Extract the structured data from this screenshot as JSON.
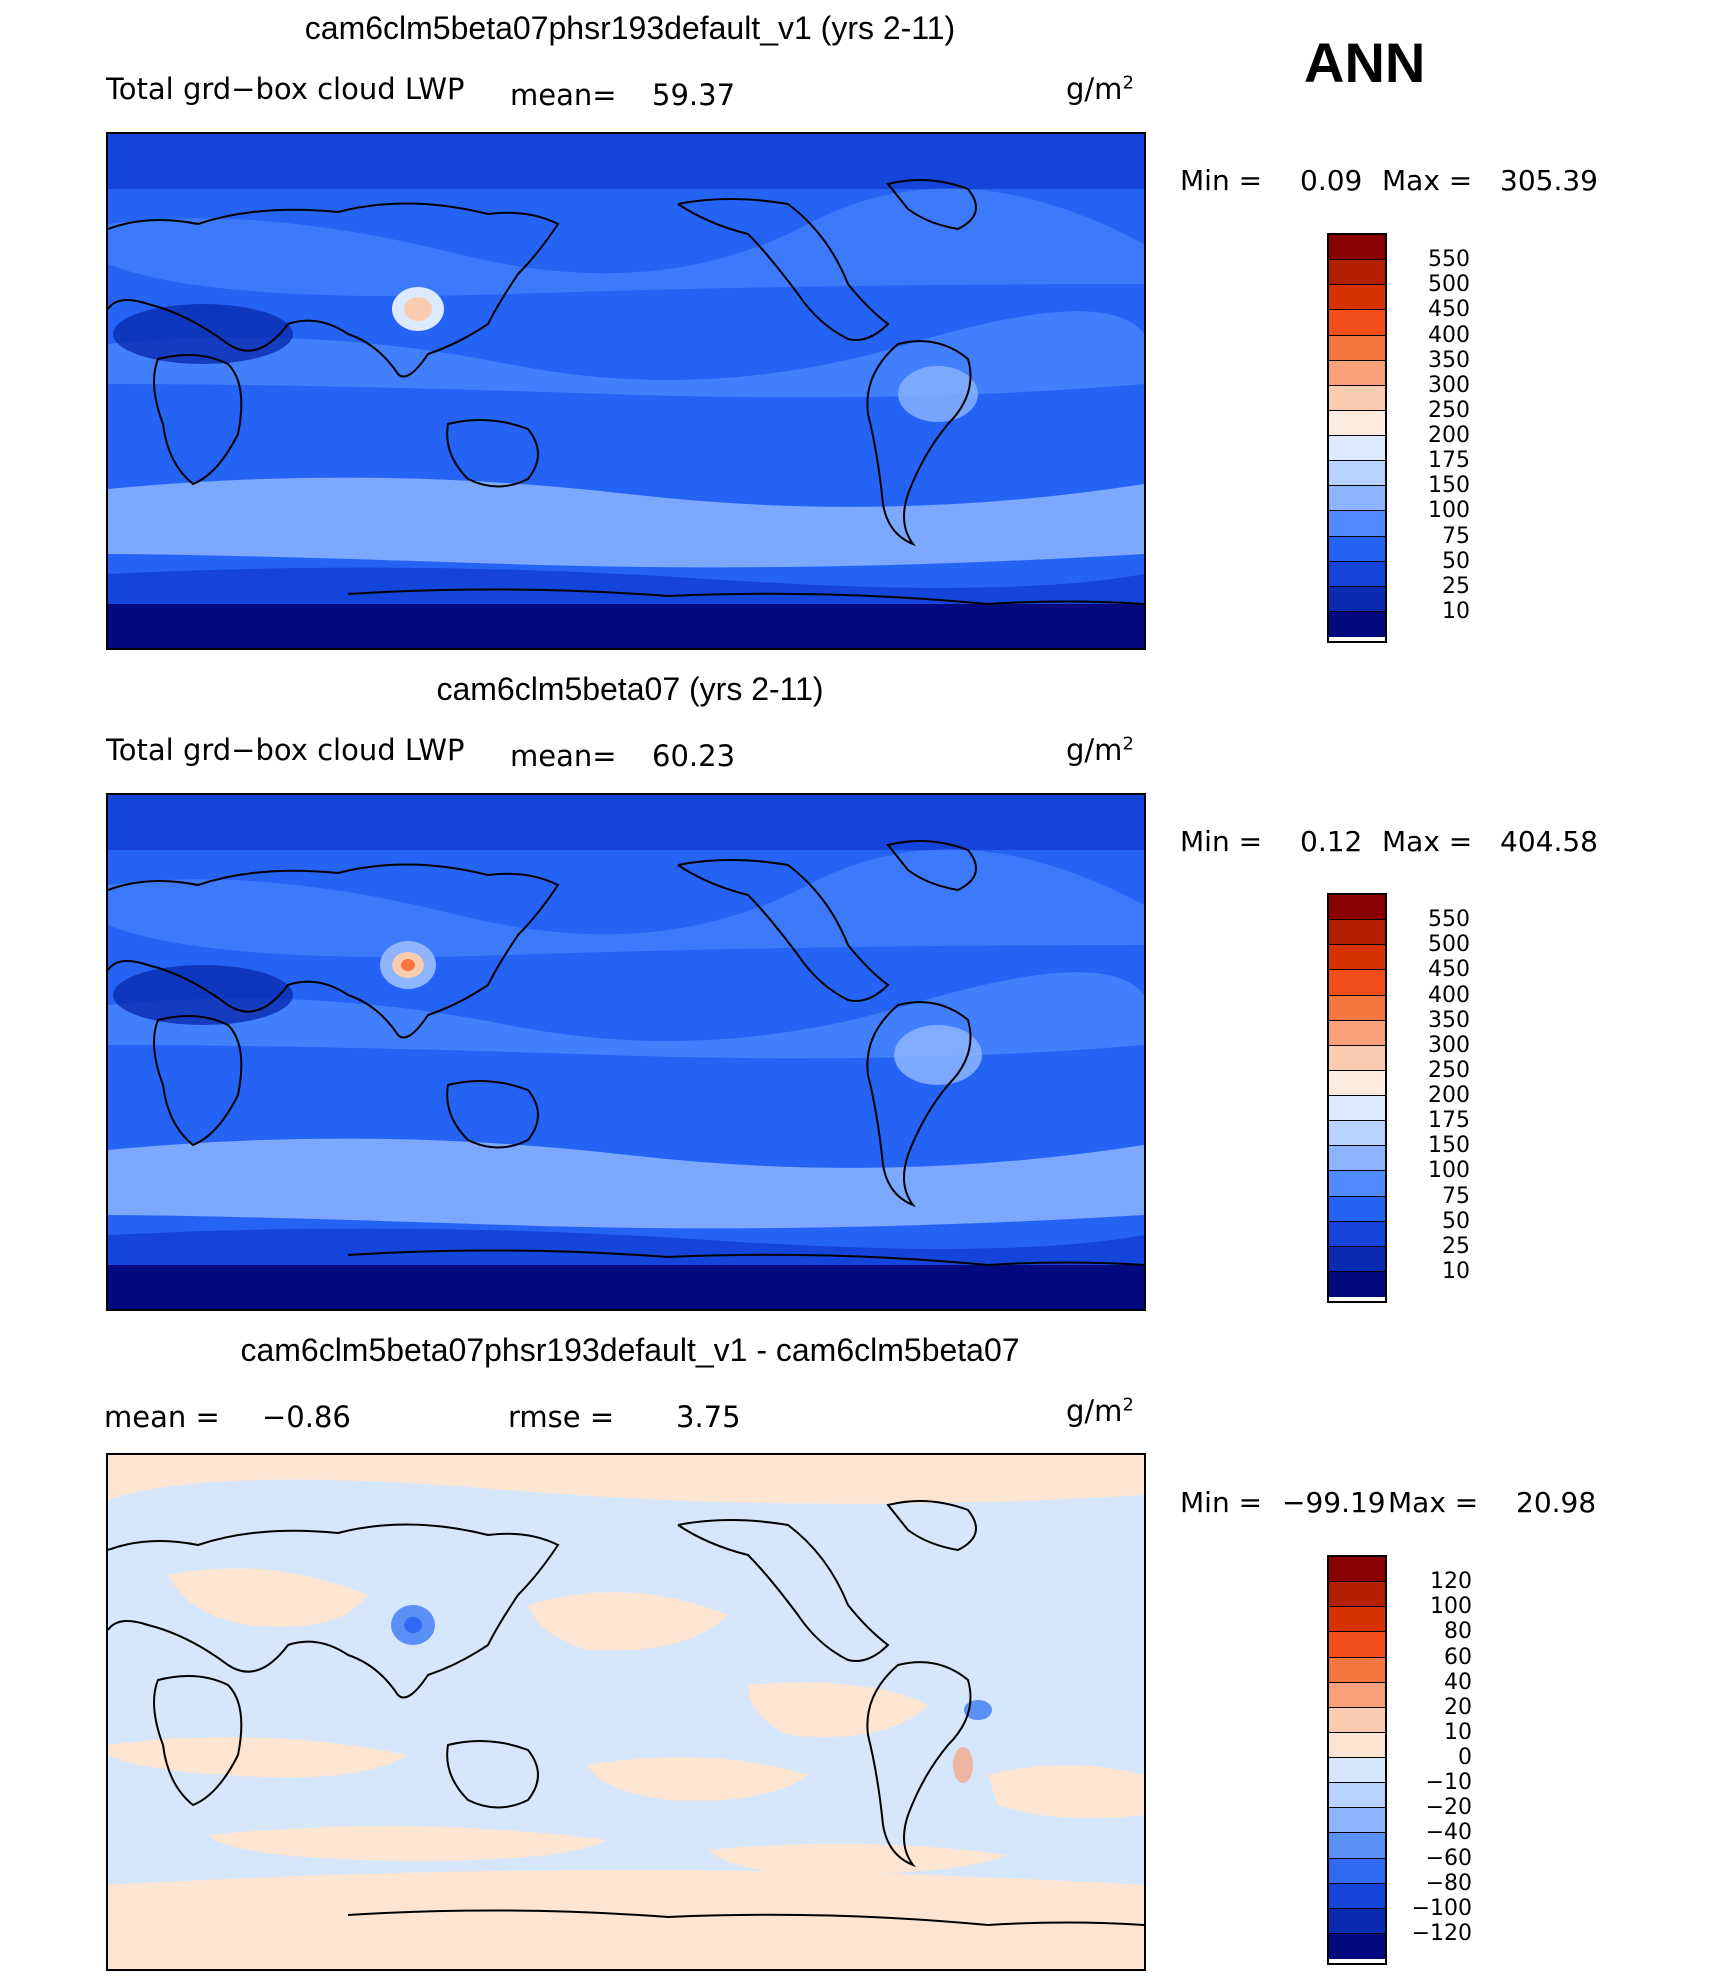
{
  "season": "ANN",
  "units_base": "g/m",
  "units_exp": "2",
  "panels": [
    {
      "title": "cam6clm5beta07phsr193default_v1 (yrs 2-11)",
      "variable": "Total grd−box cloud LWP",
      "mean_label": "mean=",
      "mean_value": "59.37",
      "min_label": "Min =",
      "min_value": "0.09",
      "max_label": "Max =",
      "max_value": "305.39",
      "colorbar": {
        "levels": [
          "550",
          "500",
          "450",
          "400",
          "350",
          "300",
          "250",
          "200",
          "175",
          "150",
          "100",
          "75",
          "50",
          "25",
          "10"
        ],
        "colors": [
          "#8b0000",
          "#b22000",
          "#d53200",
          "#f24e1a",
          "#f5763f",
          "#f8a07c",
          "#fbcbb0",
          "#fdebde",
          "#dbeaff",
          "#b8d2ff",
          "#8cb4ff",
          "#4f8bff",
          "#2563f5",
          "#1444d9",
          "#0a2cb0",
          "#030a80"
        ]
      }
    },
    {
      "title": "cam6clm5beta07 (yrs 2-11)",
      "variable": "Total grd−box cloud LWP",
      "mean_label": "mean=",
      "mean_value": "60.23",
      "min_label": "Min =",
      "min_value": "0.12",
      "max_label": "Max =",
      "max_value": "404.58",
      "colorbar": {
        "levels": [
          "550",
          "500",
          "450",
          "400",
          "350",
          "300",
          "250",
          "200",
          "175",
          "150",
          "100",
          "75",
          "50",
          "25",
          "10"
        ],
        "colors": [
          "#8b0000",
          "#b22000",
          "#d53200",
          "#f24e1a",
          "#f5763f",
          "#f8a07c",
          "#fbcbb0",
          "#fdebde",
          "#dbeaff",
          "#b8d2ff",
          "#8cb4ff",
          "#4f8bff",
          "#2563f5",
          "#1444d9",
          "#0a2cb0",
          "#030a80"
        ]
      }
    },
    {
      "title": "cam6clm5beta07phsr193default_v1 - cam6clm5beta07",
      "mean_label": "mean =",
      "mean_value": "−0.86",
      "rmse_label": "rmse =",
      "rmse_value": "3.75",
      "min_label": "Min =",
      "min_value": "−99.19",
      "max_label": "Max =",
      "max_value": "20.98",
      "colorbar": {
        "levels": [
          "120",
          "100",
          "80",
          "60",
          "40",
          "20",
          "10",
          "0",
          "−10",
          "−20",
          "−40",
          "−60",
          "−80",
          "−100",
          "−120"
        ],
        "colors": [
          "#8b0000",
          "#b22000",
          "#d53200",
          "#f24e1a",
          "#f5763f",
          "#f8a07c",
          "#fbcbb0",
          "#fde5d2",
          "#d6e6fb",
          "#b8d2ff",
          "#8cb4ff",
          "#5a8ff5",
          "#2f6af0",
          "#1444d9",
          "#0a2cb0",
          "#030a80"
        ]
      }
    }
  ]
}
